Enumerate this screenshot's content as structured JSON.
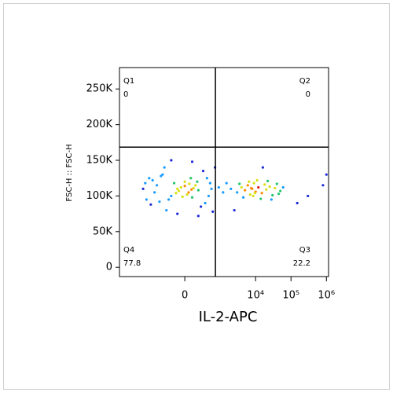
{
  "chart_data": {
    "type": "scatter",
    "x_label": "IL-2-APC",
    "y_label": "FSC-H :: FSC-H",
    "x_scale": "biexponential",
    "xlim": [
      -7000,
      1150000
    ],
    "ylim": [
      -13000,
      280000
    ],
    "xticks": [
      0,
      {
        "value": 10000,
        "label": "10⁴"
      },
      {
        "value": 100000,
        "label": "10⁵"
      },
      {
        "value": 1000000,
        "label": "10⁶"
      }
    ],
    "yticks": [
      0,
      {
        "value": 50000,
        "label": "50K"
      },
      {
        "value": 100000,
        "label": "100K"
      },
      {
        "value": 150000,
        "label": "150K"
      },
      {
        "value": 200000,
        "label": "200K"
      },
      {
        "value": 250000,
        "label": "250K"
      }
    ],
    "gate": {
      "x": 720,
      "y": 168500
    },
    "quadrants": [
      {
        "name": "Q1",
        "value": 0,
        "corner": "top-left"
      },
      {
        "name": "Q2",
        "value": 0,
        "corner": "top-right"
      },
      {
        "name": "Q3",
        "value": 22.2,
        "corner": "bottom-right"
      },
      {
        "name": "Q4",
        "value": 77.8,
        "corner": "bottom-left"
      }
    ],
    "x": [
      -100,
      50,
      150,
      -200,
      0,
      100,
      -50,
      200,
      -150,
      80,
      -250,
      30,
      120,
      -80,
      0,
      60,
      -120,
      180,
      -30,
      90,
      -400,
      350,
      -600,
      400,
      -500,
      300,
      -350,
      450,
      -700,
      250,
      -300,
      500,
      -800,
      550,
      -450,
      -1500,
      -1200,
      -1000,
      -900,
      -1300,
      700,
      600,
      -200,
      100,
      -100,
      200,
      900,
      1200,
      1500,
      2000,
      3000,
      4000,
      5000,
      6000,
      7000,
      8000,
      9000,
      10000,
      12000,
      15000,
      18000,
      20000,
      25000,
      30000,
      35000,
      40000,
      50000,
      60000,
      4500,
      6500,
      8500,
      11000,
      14000,
      22000,
      28000,
      45000,
      3500,
      7500,
      9500,
      300000,
      800000,
      150000,
      1000000,
      2500,
      16000
    ],
    "y": [
      110000,
      105000,
      115000,
      100000,
      120000,
      98000,
      112000,
      108000,
      118000,
      125000,
      95000,
      102000,
      111000,
      107000,
      114000,
      117000,
      104000,
      120000,
      99000,
      109000,
      130000,
      90000,
      115000,
      125000,
      92000,
      135000,
      140000,
      100000,
      105000,
      85000,
      80000,
      118000,
      122000,
      110000,
      128000,
      110000,
      95000,
      125000,
      88000,
      118000,
      140000,
      78000,
      150000,
      148000,
      75000,
      72000,
      112000,
      105000,
      118000,
      110000,
      105000,
      112000,
      108000,
      115000,
      102000,
      110000,
      118000,
      106000,
      112000,
      104000,
      116000,
      109000,
      113000,
      101000,
      111000,
      117000,
      107000,
      112000,
      98000,
      120000,
      100000,
      122000,
      96000,
      121000,
      95000,
      103000,
      117000,
      111000,
      104000,
      100000,
      115000,
      90000,
      130000,
      80000,
      140000
    ]
  }
}
